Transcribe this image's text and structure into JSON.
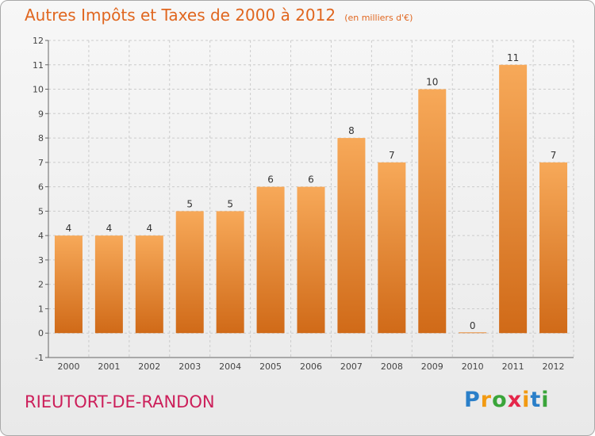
{
  "title": "Autres Impôts et Taxes de 2000 à 2012",
  "unit_label": "(en milliers d'€)",
  "place_name": "RIEUTORT-DE-RANDON",
  "logo": {
    "letters": [
      "P",
      "r",
      "o",
      "x",
      "i",
      "t",
      "i"
    ],
    "colors": [
      "#2a7fc9",
      "#f29a12",
      "#3aa53a",
      "#e5264a",
      "#f29a12",
      "#2a7fc9",
      "#3aa53a"
    ]
  },
  "colors": {
    "bar_top": "#f7a959",
    "bar_bottom": "#d06a18",
    "grid": "#cccccc",
    "title": "#e0661f",
    "place": "#cc1f5a"
  },
  "chart_data": {
    "type": "bar",
    "title": "Autres Impôts et Taxes de 2000 à 2012",
    "subtitle": "(en milliers d'€)",
    "categories": [
      "2000",
      "2001",
      "2002",
      "2003",
      "2004",
      "2005",
      "2006",
      "2007",
      "2008",
      "2009",
      "2010",
      "2011",
      "2012"
    ],
    "values": [
      4,
      4,
      4,
      5,
      5,
      6,
      6,
      8,
      7,
      10,
      0,
      11,
      7
    ],
    "ylim": [
      -1,
      12
    ],
    "yticks": [
      -1,
      0,
      1,
      2,
      3,
      4,
      5,
      6,
      7,
      8,
      9,
      10,
      11,
      12
    ],
    "grid": true,
    "xlabel": "",
    "ylabel": ""
  }
}
